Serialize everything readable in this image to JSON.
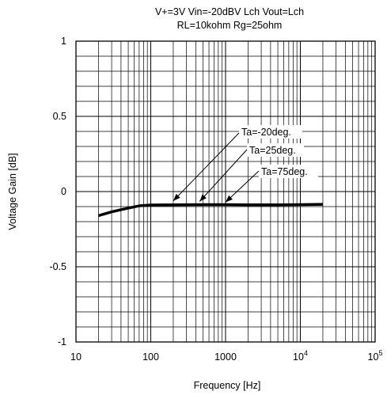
{
  "chart_data": {
    "type": "line",
    "title_lines": [
      "V+=3V Vin=-20dBV Lch Vout=Lch",
      "RL=10kohm Rg=25ohm"
    ],
    "xlabel": "Frequency [Hz]",
    "ylabel": "Voltage Gain [dB]",
    "x_scale": "log",
    "xlim": [
      10,
      100000
    ],
    "ylim": [
      -1,
      1
    ],
    "grid": true,
    "x_tick_labels": [
      {
        "value": 10,
        "base": "10",
        "exp": ""
      },
      {
        "value": 100,
        "base": "100",
        "exp": ""
      },
      {
        "value": 1000,
        "base": "1000",
        "exp": ""
      },
      {
        "value": 10000,
        "base": "10",
        "exp": "4"
      },
      {
        "value": 100000,
        "base": "10",
        "exp": "5"
      }
    ],
    "y_ticks": [
      {
        "value": 1,
        "label": "1"
      },
      {
        "value": 0.5,
        "label": "0.5"
      },
      {
        "value": 0,
        "label": "0"
      },
      {
        "value": -0.5,
        "label": "-0.5"
      },
      {
        "value": -1,
        "label": "-1"
      }
    ],
    "y_minor_step": 0.1,
    "series": [
      {
        "name": "Ta=-20deg.",
        "x": [
          20,
          30,
          40,
          50,
          70,
          100,
          200,
          500,
          1000,
          2000,
          5000,
          10000,
          20000
        ],
        "y": [
          -0.155,
          -0.13,
          -0.115,
          -0.105,
          -0.09,
          -0.085,
          -0.083,
          -0.082,
          -0.082,
          -0.083,
          -0.083,
          -0.082,
          -0.08
        ]
      },
      {
        "name": "Ta=25deg.",
        "x": [
          20,
          30,
          40,
          50,
          70,
          100,
          200,
          500,
          1000,
          2000,
          5000,
          10000,
          20000
        ],
        "y": [
          -0.16,
          -0.135,
          -0.12,
          -0.11,
          -0.095,
          -0.09,
          -0.088,
          -0.087,
          -0.087,
          -0.088,
          -0.088,
          -0.087,
          -0.085
        ]
      },
      {
        "name": "Ta=75deg.",
        "x": [
          20,
          30,
          40,
          50,
          70,
          100,
          200,
          500,
          1000,
          2000,
          5000,
          10000,
          20000
        ],
        "y": [
          -0.165,
          -0.14,
          -0.125,
          -0.115,
          -0.1,
          -0.095,
          -0.093,
          -0.092,
          -0.092,
          -0.093,
          -0.093,
          -0.092,
          -0.09
        ]
      }
    ],
    "annotations": [
      {
        "series": "Ta=-20deg.",
        "label": "Ta=-20deg.",
        "x": 200,
        "y": -0.083
      },
      {
        "series": "Ta=25deg.",
        "label": "Ta=25deg.",
        "x": 450,
        "y": -0.087
      },
      {
        "series": "Ta=75deg.",
        "label": "Ta=75deg.",
        "x": 1000,
        "y": -0.092
      }
    ]
  }
}
